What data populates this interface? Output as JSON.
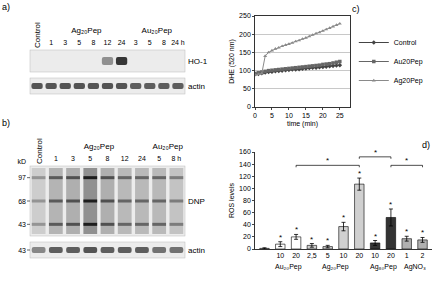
{
  "blots": [
    {
      "letter": "a)",
      "groups": [
        {
          "label": "Control",
          "times": [
            null
          ]
        },
        {
          "label": "Ag₂₀Pep",
          "times": [
            "1",
            "3",
            "5",
            "8",
            "12",
            "24"
          ]
        },
        {
          "label": "Au₂₀Pep",
          "times": [
            "3",
            "5",
            "8",
            "24 h"
          ]
        }
      ],
      "rows": [
        {
          "label": "HO-1",
          "intensity": [
            0,
            0,
            0,
            0,
            0,
            0.45,
            0.9,
            0,
            0,
            0,
            0
          ]
        },
        {
          "label": "actin",
          "intensity": [
            0.75,
            0.75,
            0.75,
            0.75,
            0.75,
            0.75,
            0.75,
            0.7,
            0.7,
            0.7,
            0.7
          ]
        }
      ]
    },
    {
      "letter": "b)",
      "marker_unit": "kD",
      "groups": [
        {
          "label": "Control",
          "times": [
            null
          ]
        },
        {
          "label": "Ag₂₀Pep",
          "times": [
            "1",
            "3",
            "5",
            "8",
            "12",
            "24"
          ]
        },
        {
          "label": "Au₂₀Pep",
          "times": [
            "5",
            "8 h"
          ]
        }
      ],
      "rows": [
        {
          "label": "DNP",
          "markers": [
            97,
            68,
            43
          ],
          "intensity": [
            0.3,
            0.55,
            0.6,
            0.9,
            0.6,
            0.5,
            0.5,
            0.5,
            0.4
          ]
        },
        {
          "label": "actin",
          "markers": [
            43
          ],
          "intensity": [
            0.5,
            0.7,
            0.7,
            0.75,
            0.7,
            0.7,
            0.7,
            0.6,
            0.6
          ]
        }
      ]
    }
  ],
  "chart_data": [
    {
      "type": "line",
      "title": "c)",
      "xlabel": "time (min)",
      "ylabel": "DHE (520 nm)",
      "x": [
        0,
        1,
        2,
        3,
        4,
        5,
        6,
        7,
        8,
        9,
        10,
        11,
        12,
        13,
        14,
        15,
        16,
        17,
        18,
        19,
        20,
        21,
        22,
        23,
        24,
        25
      ],
      "series": [
        {
          "name": "Control",
          "color": "#444444",
          "marker": "diamond",
          "values": [
            90,
            91,
            93,
            95,
            96,
            97,
            98,
            99,
            100,
            101,
            102,
            103,
            103,
            104,
            105,
            106,
            107,
            108,
            108,
            109,
            110,
            111,
            112,
            113,
            114,
            115
          ]
        },
        {
          "name": "Au20Pep",
          "color": "#666666",
          "marker": "square",
          "values": [
            92,
            94,
            96,
            98,
            100,
            101,
            102,
            103,
            104,
            105,
            106,
            107,
            108,
            109,
            110,
            111,
            112,
            113,
            114,
            115,
            117,
            118,
            119,
            121,
            123,
            125
          ]
        },
        {
          "name": "Ag20Pep",
          "color": "#8a8a8a",
          "marker": "triangle-up",
          "values": [
            88,
            90,
            92,
            140,
            150,
            155,
            160,
            163,
            167,
            170,
            173,
            176,
            180,
            183,
            187,
            190,
            194,
            198,
            202,
            205,
            209,
            213,
            217,
            221,
            225,
            229
          ]
        }
      ],
      "xlim": [
        0,
        28
      ],
      "ylim": [
        0,
        250
      ],
      "xticks": [
        0,
        5,
        10,
        15,
        20,
        25
      ],
      "yticks": [
        0,
        50,
        100,
        150,
        200,
        250
      ],
      "grid": true,
      "legend": "right"
    },
    {
      "type": "bar",
      "title": "d)",
      "ylabel": "ROS levels",
      "categories": [
        null,
        "10",
        "20",
        "2,5",
        "5",
        "10",
        "20",
        "10",
        "20",
        "1",
        "2"
      ],
      "values": [
        1,
        8,
        20,
        6,
        4,
        37,
        107,
        10,
        52,
        17,
        15
      ],
      "errors": [
        1,
        4,
        4,
        3,
        2,
        7,
        10,
        4,
        14,
        4,
        4
      ],
      "colors": [
        "#ffffff",
        "#ffffff",
        "#ffffff",
        "#d0d0d0",
        "#d0d0d0",
        "#d0d0d0",
        "#d0d0d0",
        "#333333",
        "#333333",
        "#b0b0b0",
        "#b0b0b0"
      ],
      "ylim": [
        0,
        160
      ],
      "yticks": [
        0,
        20,
        40,
        60,
        80,
        100,
        120,
        140,
        160
      ],
      "groups": [
        {
          "label": "Au₂₀Pep",
          "from": 1,
          "to": 2
        },
        {
          "label": "Ag₂₀Pep",
          "from": 3,
          "to": 6
        },
        {
          "label": "Ag₈₀Pep",
          "from": 7,
          "to": 8
        },
        {
          "label": "AgNO₃",
          "from": 9,
          "to": 10
        }
      ],
      "annotations": [
        {
          "x": 1,
          "text": "*"
        },
        {
          "x": 2,
          "text": "*"
        },
        {
          "x": 3,
          "text": "*"
        },
        {
          "x": 4,
          "text": "*"
        },
        {
          "x": 5,
          "text": "*"
        },
        {
          "x": 6,
          "text": "*"
        },
        {
          "x": 7,
          "text": "*"
        },
        {
          "x": 8,
          "text": "*"
        },
        {
          "x": 9,
          "text": "*"
        },
        {
          "x": 10,
          "text": "*"
        }
      ],
      "brackets": [
        {
          "from": 2,
          "to": 6,
          "y": 138,
          "text": "*"
        },
        {
          "from": 6,
          "to": 8,
          "y": 152,
          "text": "*"
        },
        {
          "from": 8,
          "to": 10,
          "y": 138,
          "text": "*"
        }
      ]
    }
  ]
}
